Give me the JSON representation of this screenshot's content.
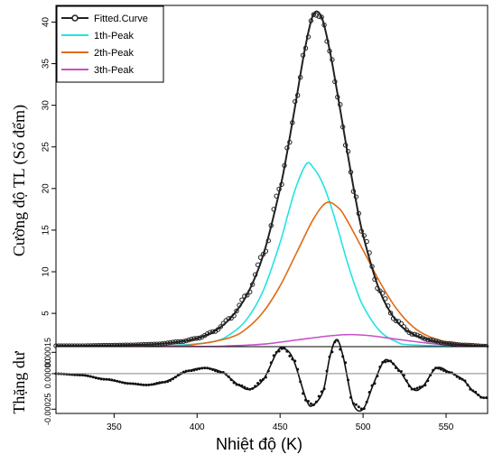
{
  "chart_data": [
    {
      "type": "line",
      "panel": "main",
      "ylabel": "Cường độ TL (Số đếm)",
      "xlim": [
        315,
        575
      ],
      "ylim": [
        1,
        42
      ],
      "yticks": [
        5,
        10,
        15,
        20,
        25,
        30,
        35,
        40
      ],
      "legend_position": "top-left",
      "legend": [
        "Fitted.Curve",
        "1th-Peak",
        "2th-Peak",
        "3th-Peak"
      ],
      "series": [
        {
          "name": "Fitted.Curve",
          "color": "#222222",
          "markers": true,
          "x": [
            315,
            330,
            345,
            360,
            375,
            390,
            400,
            410,
            420,
            430,
            440,
            450,
            455,
            460,
            465,
            470,
            475,
            480,
            485,
            490,
            495,
            500,
            510,
            520,
            530,
            540,
            550,
            560,
            575
          ],
          "y": [
            1.1,
            1.1,
            1.15,
            1.2,
            1.3,
            1.6,
            2.0,
            2.8,
            4.4,
            7.2,
            12.1,
            20.0,
            25.2,
            31.0,
            36.8,
            40.9,
            40.6,
            36.5,
            30.9,
            25.0,
            19.3,
            14.4,
            7.7,
            4.1,
            2.5,
            1.8,
            1.4,
            1.2,
            1.05
          ]
        },
        {
          "name": "1th-Peak",
          "color": "#22e3e3",
          "x": [
            315,
            360,
            390,
            410,
            420,
            430,
            440,
            450,
            455,
            460,
            466,
            470,
            475,
            480,
            485,
            490,
            495,
            500,
            510,
            520,
            530,
            575
          ],
          "y": [
            1.0,
            1.0,
            1.2,
            1.6,
            2.5,
            4.3,
            7.8,
            13.5,
            17.1,
            20.4,
            23.0,
            22.5,
            20.9,
            18.3,
            15.0,
            11.5,
            8.4,
            5.9,
            2.9,
            1.6,
            1.2,
            1.0
          ]
        },
        {
          "name": "2th-Peak",
          "color": "#e06a14",
          "x": [
            315,
            380,
            400,
            420,
            430,
            440,
            450,
            460,
            470,
            478,
            485,
            490,
            500,
            510,
            520,
            530,
            540,
            555,
            575
          ],
          "y": [
            1.0,
            1.05,
            1.3,
            2.1,
            3.2,
            5.2,
            8.3,
            12.3,
            16.3,
            18.3,
            17.7,
            16.3,
            12.6,
            8.8,
            5.6,
            3.4,
            2.2,
            1.4,
            1.1
          ]
        },
        {
          "name": "3th-Peak",
          "color": "#c84fc8",
          "x": [
            315,
            400,
            420,
            440,
            460,
            480,
            492,
            505,
            520,
            540,
            560,
            575
          ],
          "y": [
            1.0,
            1.02,
            1.1,
            1.3,
            1.8,
            2.3,
            2.45,
            2.3,
            1.9,
            1.4,
            1.1,
            1.02
          ]
        }
      ]
    },
    {
      "type": "line",
      "panel": "residual",
      "xlabel": "Nhiệt độ (K)",
      "ylabel": "Thặng dư",
      "xlim": [
        315,
        575
      ],
      "xticks": [
        350,
        400,
        450,
        500,
        550
      ],
      "ylim": [
        -0.00028,
        0.00019
      ],
      "yticks": [
        "-0.00025",
        "0.00000",
        "0.00015"
      ],
      "ytick_values": [
        -0.00025,
        0,
        0.00015
      ],
      "zero_line": true,
      "series": [
        {
          "name": "",
          "color": "#111111",
          "markers": true,
          "x": [
            315,
            330,
            345,
            360,
            370,
            380,
            395,
            405,
            415,
            425,
            432,
            440,
            448,
            452,
            458,
            466,
            470,
            476,
            480,
            484,
            488,
            494,
            500,
            506,
            512,
            516,
            522,
            530,
            536,
            544,
            552,
            560,
            566,
            572
          ],
          "y": [
            0,
            -1e-05,
            -4e-05,
            -7e-05,
            -8e-05,
            -6e-05,
            2e-05,
            4e-05,
            1e-05,
            -8e-05,
            -0.00011,
            -4e-05,
            0.00015,
            0.00018,
            0.0001,
            -0.00019,
            -0.00022,
            -0.00012,
            0.00012,
            0.00024,
            0.00012,
            -0.00021,
            -0.00025,
            -8e-05,
            8e-05,
            9e-05,
            2e-05,
            -0.00011,
            -9e-05,
            4e-05,
            1e-05,
            -4e-05,
            -0.00012,
            -0.00017
          ]
        }
      ]
    }
  ]
}
